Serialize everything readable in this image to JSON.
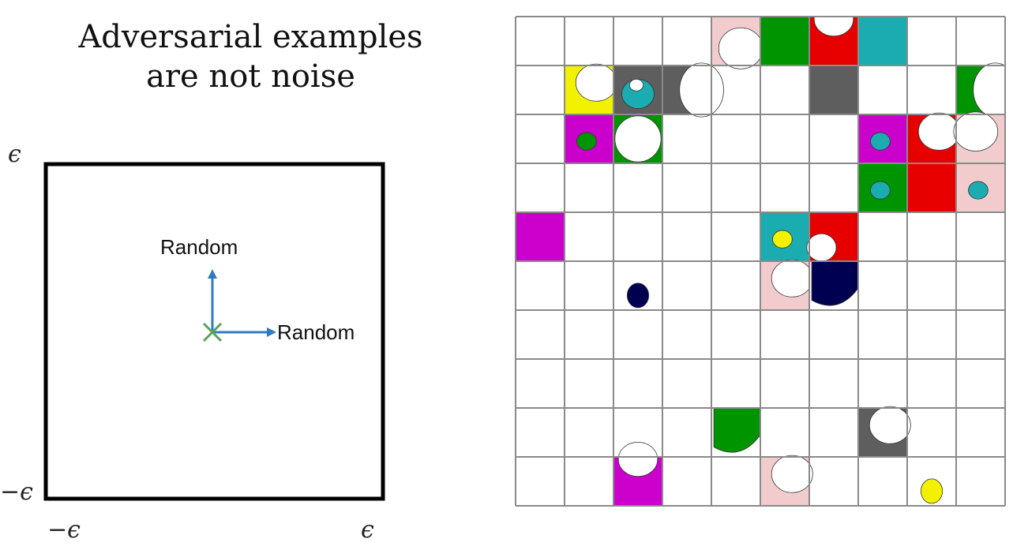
{
  "title": {
    "line1": "Adversarial examples",
    "line2": "are not noise"
  },
  "left_diagram": {
    "eps_top": "ϵ",
    "eps_bottom_left": "−ϵ",
    "eps_x_min": "−ϵ",
    "eps_x_max": "ϵ",
    "arrow_up_label": "Random",
    "arrow_right_label": "Random",
    "colors": {
      "arrow": "#2e7bbf",
      "origin_marker": "#5aa05a",
      "box": "#000000"
    }
  },
  "grid": {
    "rows": 10,
    "cols": 10,
    "line_color": "#8a8a8a",
    "colored_cells": [
      {
        "r": 0,
        "c": 4,
        "color": "#f2cccc",
        "blob": "br"
      },
      {
        "r": 0,
        "c": 5,
        "color": "#009400"
      },
      {
        "r": 0,
        "c": 6,
        "color": "#e60000",
        "blob": "tc"
      },
      {
        "r": 0,
        "c": 7,
        "color": "#1aacb0"
      },
      {
        "r": 1,
        "c": 1,
        "color": "#f2f200",
        "blob": "tr"
      },
      {
        "r": 1,
        "c": 2,
        "color": "#5e5e5e",
        "blob": "ring",
        "inner": "#1aacb0"
      },
      {
        "r": 1,
        "c": 3,
        "color": "#5e5e5e",
        "blob": "right"
      },
      {
        "r": 1,
        "c": 6,
        "color": "#5e5e5e"
      },
      {
        "r": 1,
        "c": 9,
        "color": "#009400",
        "blob": "right"
      },
      {
        "r": 2,
        "c": 1,
        "color": "#cc00cc",
        "dot": "#009400"
      },
      {
        "r": 2,
        "c": 2,
        "color": "#009400",
        "blob": "full"
      },
      {
        "r": 2,
        "c": 7,
        "color": "#cc00cc",
        "dot": "#1aacb0"
      },
      {
        "r": 2,
        "c": 8,
        "color": "#e60000",
        "blob": "tr"
      },
      {
        "r": 2,
        "c": 9,
        "color": "#f2cccc",
        "blob": "tl"
      },
      {
        "r": 3,
        "c": 7,
        "color": "#009400",
        "dot": "#1aacb0"
      },
      {
        "r": 3,
        "c": 8,
        "color": "#e60000"
      },
      {
        "r": 3,
        "c": 9,
        "color": "#f2cccc",
        "dot": "#1aacb0"
      },
      {
        "r": 4,
        "c": 0,
        "color": "#cc00cc"
      },
      {
        "r": 4,
        "c": 5,
        "color": "#1aacb0",
        "dot": "#f2f200"
      },
      {
        "r": 4,
        "c": 6,
        "color": "#e60000",
        "blob": "ring2"
      },
      {
        "r": 5,
        "c": 2,
        "color": "#000050",
        "blob": "smalldot"
      },
      {
        "r": 5,
        "c": 5,
        "color": "#f2cccc",
        "blob": "tr"
      },
      {
        "r": 5,
        "c": 6,
        "color": "#000050",
        "blob": "bottomhalf"
      },
      {
        "r": 8,
        "c": 4,
        "color": "#009400",
        "blob": "bottomhalf"
      },
      {
        "r": 8,
        "c": 7,
        "color": "#5e5e5e",
        "blob": "tr"
      },
      {
        "r": 9,
        "c": 2,
        "color": "#cc00cc",
        "blob": "tc"
      },
      {
        "r": 9,
        "c": 5,
        "color": "#f2cccc",
        "blob": "tr"
      },
      {
        "r": 9,
        "c": 8,
        "color": "#f2f200",
        "blob": "smalldot"
      }
    ]
  }
}
